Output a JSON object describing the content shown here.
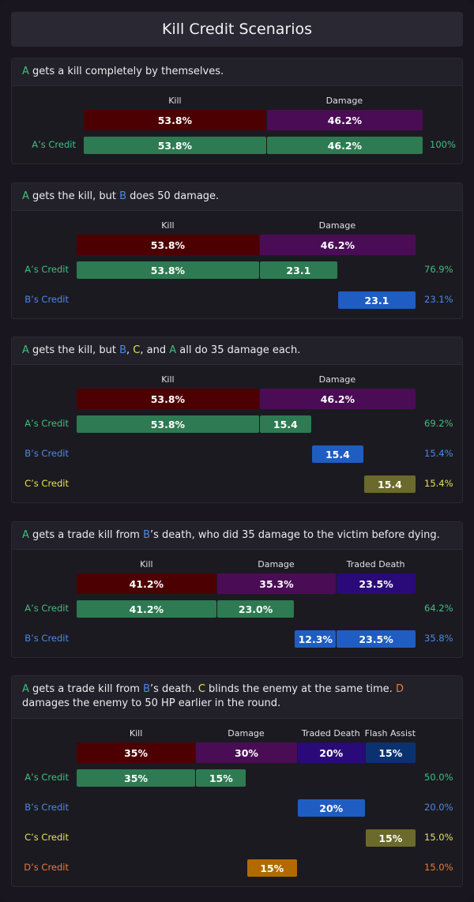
{
  "title": "Kill Credit Scenarios",
  "colors": {
    "A": "#3fbf80",
    "B": "#4a8ae6",
    "C": "#e2e35a",
    "D": "#e87c3a",
    "kill": "#4d0002",
    "damage": "#4a0d55",
    "traded": "#2a0a78",
    "flash": "#0b3270",
    "A_bar": "#2e7a52",
    "B_bar": "#1f5dc2",
    "C_bar": "#6b6a2c",
    "D_bar": "#b26a00"
  },
  "chart_data": [
    {
      "type": "bar",
      "description": [
        {
          "t": "A",
          "c": "A"
        },
        {
          "t": " gets a kill completely by themselves."
        }
      ],
      "categories": [
        "Kill",
        "Damage"
      ],
      "values": [
        53.8,
        46.2
      ],
      "value_labels": [
        "53.8%",
        "46.2%"
      ],
      "credits": [
        {
          "player": "A",
          "label": "A’s Credit",
          "total": "100%",
          "segments": [
            {
              "start": 0,
              "value": 53.8,
              "label": "53.8%"
            },
            {
              "start": 53.8,
              "value": 46.2,
              "label": "46.2%"
            }
          ]
        }
      ]
    },
    {
      "type": "bar",
      "description": [
        {
          "t": "A",
          "c": "A"
        },
        {
          "t": " gets the kill, but "
        },
        {
          "t": "B",
          "c": "B"
        },
        {
          "t": " does 50 damage."
        }
      ],
      "categories": [
        "Kill",
        "Damage"
      ],
      "values": [
        53.8,
        46.2
      ],
      "value_labels": [
        "53.8%",
        "46.2%"
      ],
      "credits": [
        {
          "player": "A",
          "label": "A’s Credit",
          "total": "76.9%",
          "segments": [
            {
              "start": 0,
              "value": 53.8,
              "label": "53.8%"
            },
            {
              "start": 53.8,
              "value": 23.1,
              "label": "23.1"
            }
          ]
        },
        {
          "player": "B",
          "label": "B’s Credit",
          "total": "23.1%",
          "segments": [
            {
              "start": 76.9,
              "value": 23.1,
              "label": "23.1"
            }
          ]
        }
      ]
    },
    {
      "type": "bar",
      "description": [
        {
          "t": "A",
          "c": "A"
        },
        {
          "t": " gets the kill, but "
        },
        {
          "t": "B",
          "c": "B"
        },
        {
          "t": ", "
        },
        {
          "t": "C",
          "c": "C"
        },
        {
          "t": ", and "
        },
        {
          "t": "A",
          "c": "A"
        },
        {
          "t": " all do 35 damage each."
        }
      ],
      "categories": [
        "Kill",
        "Damage"
      ],
      "values": [
        53.8,
        46.2
      ],
      "value_labels": [
        "53.8%",
        "46.2%"
      ],
      "credits": [
        {
          "player": "A",
          "label": "A’s Credit",
          "total": "69.2%",
          "segments": [
            {
              "start": 0,
              "value": 53.8,
              "label": "53.8%"
            },
            {
              "start": 53.8,
              "value": 15.4,
              "label": "15.4"
            }
          ]
        },
        {
          "player": "B",
          "label": "B’s Credit",
          "total": "15.4%",
          "segments": [
            {
              "start": 69.2,
              "value": 15.4,
              "label": "15.4"
            }
          ]
        },
        {
          "player": "C",
          "label": "C’s Credit",
          "total": "15.4%",
          "segments": [
            {
              "start": 84.6,
              "value": 15.4,
              "label": "15.4"
            }
          ]
        }
      ]
    },
    {
      "type": "bar",
      "description": [
        {
          "t": "A",
          "c": "A"
        },
        {
          "t": " gets a trade kill from "
        },
        {
          "t": "B",
          "c": "B"
        },
        {
          "t": "’s death, who did 35 damage to the victim before dying."
        }
      ],
      "categories": [
        "Kill",
        "Damage",
        "Traded Death"
      ],
      "values": [
        41.2,
        35.3,
        23.5
      ],
      "value_labels": [
        "41.2%",
        "35.3%",
        "23.5%"
      ],
      "credits": [
        {
          "player": "A",
          "label": "A’s Credit",
          "total": "64.2%",
          "segments": [
            {
              "start": 0,
              "value": 41.2,
              "label": "41.2%"
            },
            {
              "start": 41.2,
              "value": 23.0,
              "label": "23.0%"
            }
          ]
        },
        {
          "player": "B",
          "label": "B’s Credit",
          "total": "35.8%",
          "segments": [
            {
              "start": 64.2,
              "value": 12.3,
              "label": "12.3%"
            },
            {
              "start": 76.5,
              "value": 23.5,
              "label": "23.5%"
            }
          ]
        }
      ]
    },
    {
      "type": "bar",
      "description": [
        {
          "t": "A",
          "c": "A"
        },
        {
          "t": " gets a trade kill from "
        },
        {
          "t": "B",
          "c": "B"
        },
        {
          "t": "’s death. "
        },
        {
          "t": "C",
          "c": "C"
        },
        {
          "t": " blinds the enemy at the same time. "
        },
        {
          "t": "D",
          "c": "D"
        },
        {
          "t": " damages the enemy to 50 HP earlier in the round."
        }
      ],
      "categories": [
        "Kill",
        "Damage",
        "Traded Death",
        "Flash Assist"
      ],
      "values": [
        35,
        30,
        20,
        15
      ],
      "value_labels": [
        "35%",
        "30%",
        "20%",
        "15%"
      ],
      "credits": [
        {
          "player": "A",
          "label": "A’s Credit",
          "total": "50.0%",
          "segments": [
            {
              "start": 0,
              "value": 35,
              "label": "35%"
            },
            {
              "start": 35,
              "value": 15,
              "label": "15%"
            }
          ]
        },
        {
          "player": "B",
          "label": "B’s Credit",
          "total": "20.0%",
          "segments": [
            {
              "start": 65,
              "value": 20,
              "label": "20%"
            }
          ]
        },
        {
          "player": "C",
          "label": "C’s Credit",
          "total": "15.0%",
          "segments": [
            {
              "start": 85,
              "value": 15,
              "label": "15%"
            }
          ]
        },
        {
          "player": "D",
          "label": "D’s Credit",
          "total": "15.0%",
          "segments": [
            {
              "start": 50,
              "value": 15,
              "label": "15%"
            }
          ]
        }
      ]
    }
  ]
}
